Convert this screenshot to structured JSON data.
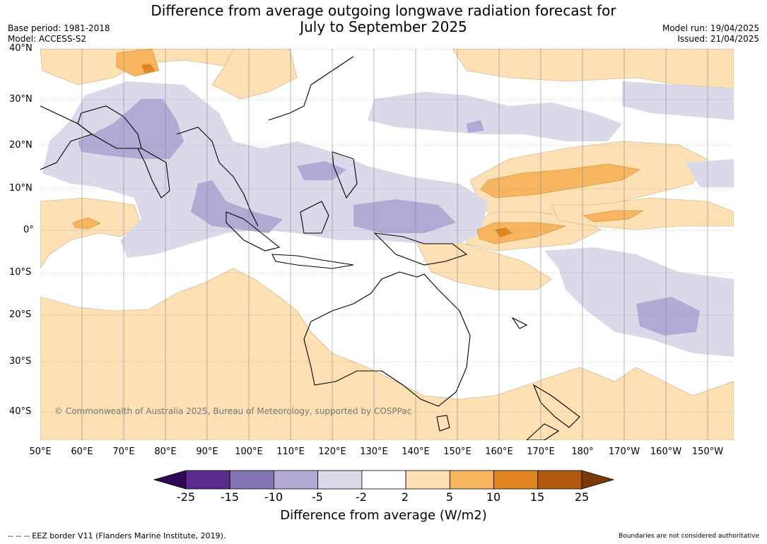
{
  "title": {
    "line1": "Difference from average outgoing longwave radiation forecast for",
    "line2": "July to September 2025"
  },
  "meta_left": {
    "base_period": "Base period: 1981-2018",
    "model": "Model: ACCESS-S2"
  },
  "meta_right": {
    "model_run": "Model run: 19/04/2025",
    "issued": "Issued: 21/04/2025"
  },
  "lat_labels": [
    "40°N",
    "30°N",
    "20°N",
    "10°N",
    "0°",
    "10°S",
    "20°S",
    "30°S",
    "40°S"
  ],
  "lon_labels": [
    "50°E",
    "60°E",
    "70°E",
    "80°E",
    "90°E",
    "100°E",
    "110°E",
    "120°E",
    "130°E",
    "140°E",
    "150°E",
    "160°E",
    "170°E",
    "180°",
    "170°W",
    "160°W",
    "150°W"
  ],
  "copyright": "© Commonwealth of Australia 2025, Bureau of Meteorology, supported by COSPPac",
  "colorbar": {
    "ticks": [
      "-25",
      "-15",
      "-10",
      "-5",
      "-2",
      "2",
      "5",
      "10",
      "15",
      "25"
    ],
    "colors": [
      "#2e0854",
      "#5a2a8c",
      "#8474b4",
      "#b2aad4",
      "#d9d9ea",
      "#ffffff",
      "#fde0b4",
      "#f8b560",
      "#e08520",
      "#b05a10",
      "#7a3a08"
    ],
    "title": "Difference from average (W/m2)"
  },
  "footer": {
    "eez": "--  --  -- EEZ border V11 (Flanders Marine Institute, 2019).",
    "disclaimer": "Boundaries are not considered authoritative"
  }
}
